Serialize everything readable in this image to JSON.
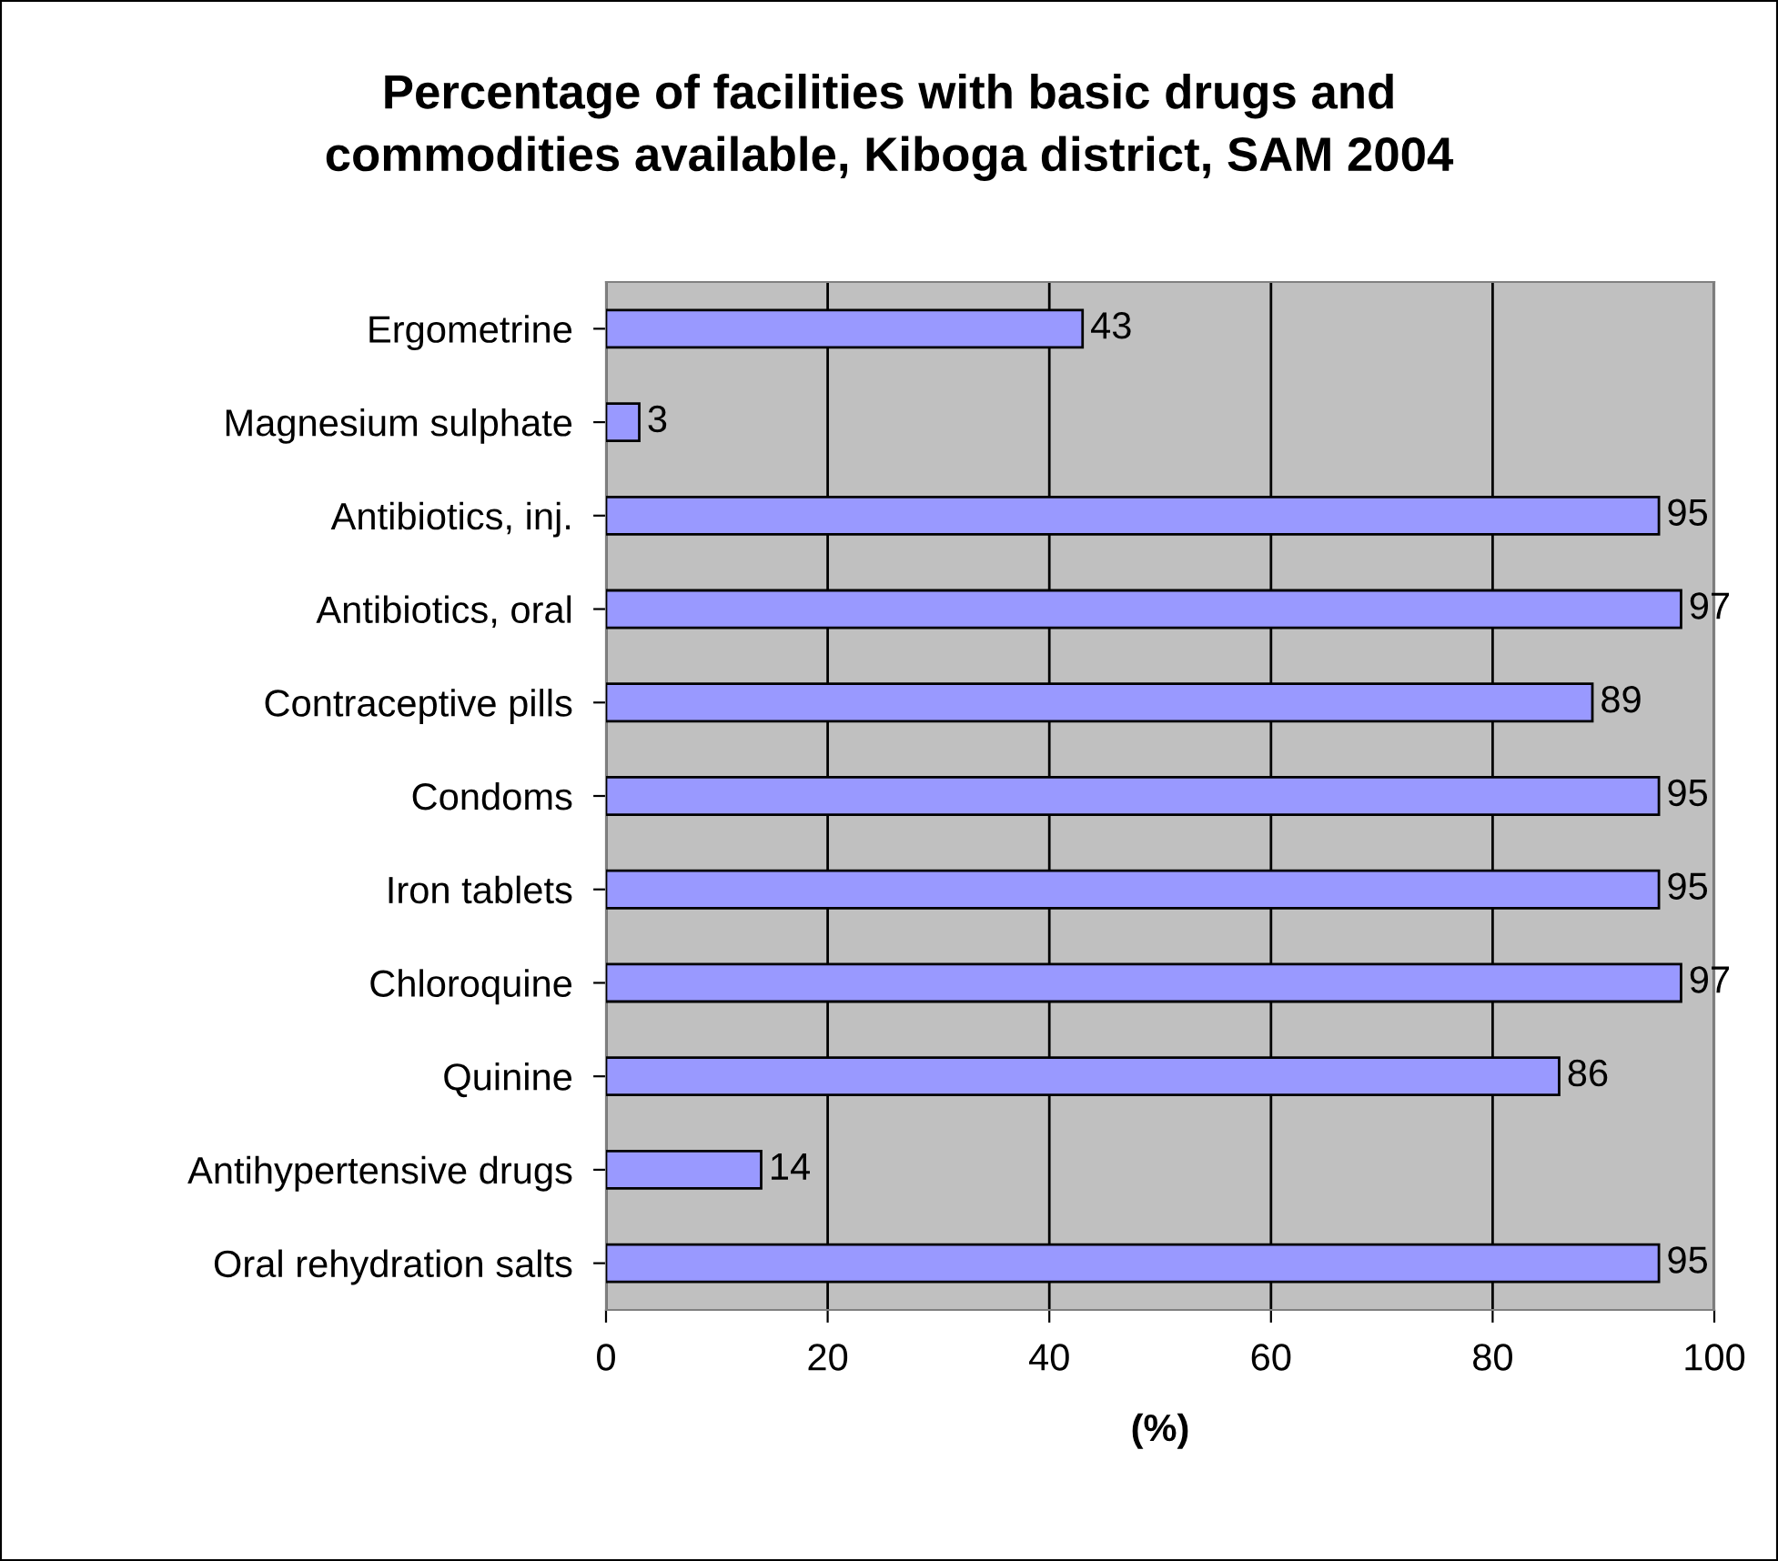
{
  "chart_data": {
    "type": "bar",
    "orientation": "horizontal",
    "title": "Percentage of facilities with basic drugs and\ncommodities available, Kiboga district, SAM 2004",
    "xlabel": "(%)",
    "categories": [
      "Ergometrine",
      "Magnesium sulphate",
      "Antibiotics, inj.",
      "Antibiotics, oral",
      "Contraceptive pills",
      "Condoms",
      "Iron tablets",
      "Chloroquine",
      "Quinine",
      "Antihypertensive drugs",
      "Oral rehydration salts"
    ],
    "values": [
      43,
      3,
      95,
      97,
      89,
      95,
      95,
      97,
      86,
      14,
      95
    ],
    "color": "#9999ff",
    "xlim": [
      0,
      100
    ],
    "xticks": [
      0,
      20,
      40,
      60,
      80,
      100
    ],
    "grid": "x",
    "data_labels": true
  }
}
